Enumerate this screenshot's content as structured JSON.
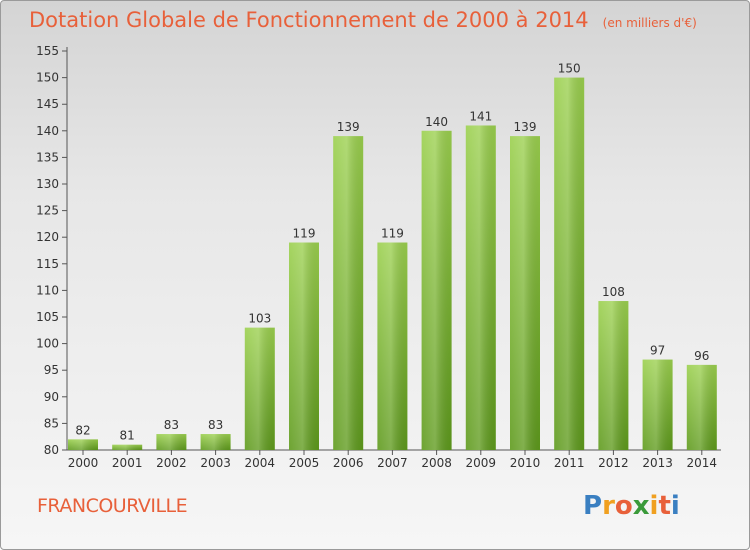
{
  "chart_data": {
    "type": "bar",
    "title": "Dotation Globale de Fonctionnement de 2000 à 2014",
    "unit": "(en milliers d'€)",
    "categories": [
      "2000",
      "2001",
      "2002",
      "2003",
      "2004",
      "2005",
      "2006",
      "2007",
      "2008",
      "2009",
      "2010",
      "2011",
      "2012",
      "2013",
      "2014"
    ],
    "values": [
      82,
      81,
      83,
      83,
      103,
      119,
      139,
      119,
      140,
      141,
      139,
      150,
      108,
      97,
      96
    ],
    "ylim": [
      80,
      155
    ],
    "yticks": [
      80,
      85,
      90,
      95,
      100,
      105,
      110,
      115,
      120,
      125,
      130,
      135,
      140,
      145,
      150,
      155
    ],
    "grid": false,
    "colors": {
      "bar_top": "#9bd04e",
      "bar_bottom": "#5e9a1c",
      "title": "#e8603a"
    }
  },
  "commune": "FRANCOURVILLE",
  "logo": {
    "letters": [
      "P",
      "r",
      "o",
      "x",
      "i",
      "t",
      "i"
    ],
    "colors": [
      "#3a7fc1",
      "#f0a020",
      "#e8603a",
      "#3a9a3a",
      "#f0a020",
      "#e8603a",
      "#3a7fc1"
    ]
  }
}
